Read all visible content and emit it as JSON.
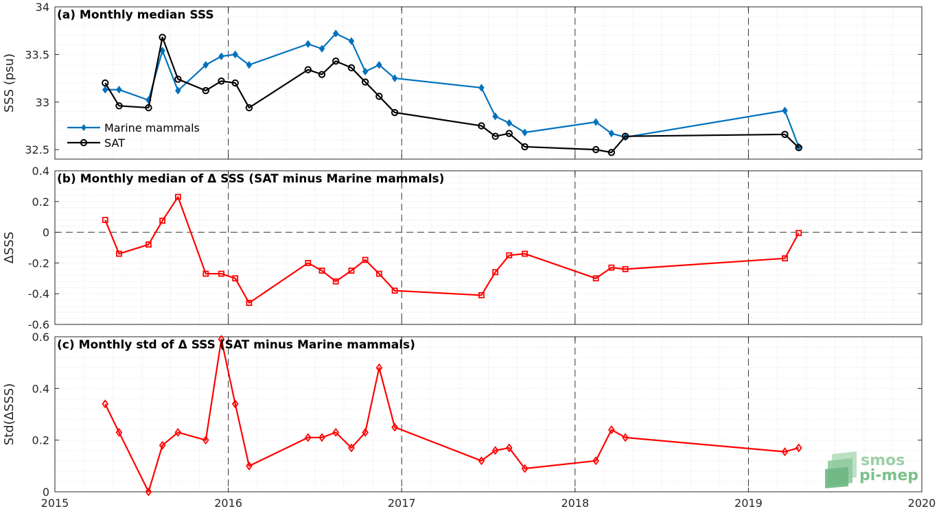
{
  "chart_data": [
    {
      "type": "line",
      "title": "(a) Monthly median SSS",
      "ylabel": "SSS (psu)",
      "xlim": [
        2015,
        2020
      ],
      "ylim": [
        32.4,
        34
      ],
      "yticks": [
        32.5,
        33,
        33.5,
        34
      ],
      "ytick_labels": [
        "32.5",
        "33",
        "33.5",
        "34"
      ],
      "grid": "on (dotted minor)",
      "legend_position": "lower-left",
      "series": [
        {
          "name": "Marine mammals",
          "color": "#0072bd",
          "marker": "diamond",
          "x": [
            2015.29,
            2015.37,
            2015.54,
            2015.62,
            2015.71,
            2015.87,
            2015.96,
            2016.04,
            2016.12,
            2016.46,
            2016.54,
            2016.62,
            2016.71,
            2016.79,
            2016.87,
            2016.96,
            2017.46,
            2017.54,
            2017.62,
            2017.71,
            2018.12,
            2018.21,
            2018.29,
            2019.21,
            2019.29
          ],
          "y": [
            33.13,
            33.13,
            33.02,
            33.54,
            33.12,
            33.39,
            33.48,
            33.5,
            33.39,
            33.61,
            33.56,
            33.72,
            33.64,
            33.32,
            33.39,
            33.25,
            33.15,
            32.85,
            32.78,
            32.68,
            32.79,
            32.67,
            32.63,
            32.91,
            32.53
          ]
        },
        {
          "name": "SAT",
          "color": "#000000",
          "marker": "circle",
          "x": [
            2015.29,
            2015.37,
            2015.54,
            2015.62,
            2015.71,
            2015.87,
            2015.96,
            2016.04,
            2016.12,
            2016.46,
            2016.54,
            2016.62,
            2016.71,
            2016.79,
            2016.87,
            2016.96,
            2017.46,
            2017.54,
            2017.62,
            2017.71,
            2018.12,
            2018.21,
            2018.29,
            2019.21,
            2019.29
          ],
          "y": [
            33.2,
            32.96,
            32.94,
            33.68,
            33.24,
            33.12,
            33.22,
            33.2,
            32.94,
            33.34,
            33.29,
            33.43,
            33.36,
            33.21,
            33.06,
            32.89,
            32.75,
            32.64,
            32.67,
            32.53,
            32.5,
            32.47,
            32.64,
            32.66,
            32.52
          ]
        }
      ]
    },
    {
      "type": "line",
      "title": "(b) Monthly median of Δ SSS (SAT minus Marine mammals)",
      "ylabel": "ΔSSS",
      "xlim": [
        2015,
        2020
      ],
      "ylim": [
        -0.6,
        0.4
      ],
      "yticks": [
        -0.6,
        -0.4,
        -0.2,
        0,
        0.2,
        0.4
      ],
      "ytick_labels": [
        "-0.6",
        "-0.4",
        "-0.2",
        "0",
        "0.2",
        "0.4"
      ],
      "grid": "on (dotted minor)",
      "zero_line": "dashed",
      "series": [
        {
          "color": "#ff0000",
          "marker": "square",
          "x": [
            2015.29,
            2015.37,
            2015.54,
            2015.62,
            2015.71,
            2015.87,
            2015.96,
            2016.04,
            2016.12,
            2016.46,
            2016.54,
            2016.62,
            2016.71,
            2016.79,
            2016.87,
            2016.96,
            2017.46,
            2017.54,
            2017.62,
            2017.71,
            2018.12,
            2018.21,
            2018.29,
            2019.21,
            2019.29
          ],
          "y": [
            0.08,
            -0.14,
            -0.08,
            0.075,
            0.23,
            -0.27,
            -0.27,
            -0.3,
            -0.46,
            -0.2,
            -0.25,
            -0.32,
            -0.25,
            -0.18,
            -0.27,
            -0.38,
            -0.41,
            -0.26,
            -0.15,
            -0.14,
            -0.3,
            -0.23,
            -0.24,
            -0.17,
            -0.005
          ]
        }
      ]
    },
    {
      "type": "line",
      "title": "(c) Monthly std of Δ SSS (SAT minus Marine mammals)",
      "ylabel": "Std(ΔSSS)",
      "xlim": [
        2015,
        2020
      ],
      "ylim": [
        0,
        0.6
      ],
      "yticks": [
        0,
        0.2,
        0.4,
        0.6
      ],
      "ytick_labels": [
        "0",
        "0.2",
        "0.4",
        "0.6"
      ],
      "xticks": [
        2015,
        2016,
        2017,
        2018,
        2019,
        2020
      ],
      "xtick_labels": [
        "2015",
        "2016",
        "2017",
        "2018",
        "2019",
        "2020"
      ],
      "grid": "on (dotted minor)",
      "series": [
        {
          "color": "#ff0000",
          "marker": "diamond",
          "x": [
            2015.29,
            2015.37,
            2015.54,
            2015.62,
            2015.71,
            2015.87,
            2015.96,
            2016.04,
            2016.12,
            2016.46,
            2016.54,
            2016.62,
            2016.71,
            2016.79,
            2016.87,
            2016.96,
            2017.46,
            2017.54,
            2017.62,
            2017.71,
            2018.12,
            2018.21,
            2018.29,
            2019.21,
            2019.29
          ],
          "y": [
            0.34,
            0.23,
            0.0,
            0.18,
            0.23,
            0.2,
            0.59,
            0.34,
            0.1,
            0.21,
            0.21,
            0.23,
            0.17,
            0.23,
            0.48,
            0.25,
            0.12,
            0.16,
            0.17,
            0.09,
            0.12,
            0.24,
            0.21,
            0.155,
            0.17
          ]
        }
      ]
    }
  ],
  "year_lines": [
    2016,
    2017,
    2018,
    2019
  ],
  "logo": {
    "line1": "smos",
    "line2": "pi-mep"
  }
}
